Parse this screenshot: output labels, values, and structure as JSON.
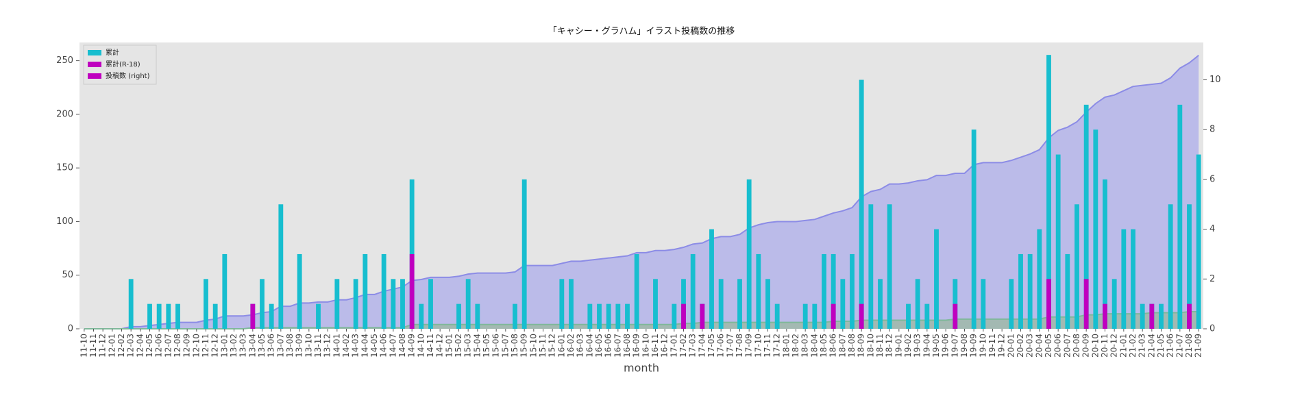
{
  "chart_data": {
    "type": "bar-area",
    "title": "「キャシー・グラハム」イラスト投稿数の推移",
    "xlabel": "month",
    "categories": [
      "11-10",
      "11-11",
      "11-12",
      "12-01",
      "12-02",
      "12-03",
      "12-04",
      "12-05",
      "12-06",
      "12-07",
      "12-08",
      "12-09",
      "12-10",
      "12-11",
      "12-12",
      "13-01",
      "13-02",
      "13-03",
      "13-04",
      "13-05",
      "13-06",
      "13-07",
      "13-08",
      "13-09",
      "13-10",
      "13-11",
      "13-12",
      "14-01",
      "14-02",
      "14-03",
      "14-04",
      "14-05",
      "14-06",
      "14-07",
      "14-08",
      "14-09",
      "14-10",
      "14-11",
      "14-12",
      "15-01",
      "15-02",
      "15-03",
      "15-04",
      "15-05",
      "15-06",
      "15-07",
      "15-08",
      "15-09",
      "15-10",
      "15-11",
      "15-12",
      "16-01",
      "16-02",
      "16-03",
      "16-04",
      "16-05",
      "16-06",
      "16-07",
      "16-08",
      "16-09",
      "16-10",
      "16-11",
      "16-12",
      "17-01",
      "17-02",
      "17-03",
      "17-04",
      "17-05",
      "17-06",
      "17-07",
      "17-08",
      "17-09",
      "17-10",
      "17-11",
      "17-12",
      "18-01",
      "18-02",
      "18-03",
      "18-04",
      "18-05",
      "18-06",
      "18-07",
      "18-08",
      "18-09",
      "18-10",
      "18-11",
      "18-12",
      "19-01",
      "19-02",
      "19-03",
      "19-04",
      "19-05",
      "19-06",
      "19-07",
      "19-08",
      "19-09",
      "19-10",
      "19-11",
      "19-12",
      "20-01",
      "20-02",
      "20-03",
      "20-04",
      "20-05",
      "20-06",
      "20-07",
      "20-08",
      "20-09",
      "20-10",
      "20-11",
      "20-12",
      "21-01",
      "21-02",
      "21-03",
      "21-04",
      "21-05",
      "21-06",
      "21-07",
      "21-08",
      "21-09"
    ],
    "legend": [
      {
        "name": "累計",
        "color": "#17becf"
      },
      {
        "name": "累計(R-18)",
        "color": "#bf00bf"
      },
      {
        "name": "投稿数 (right)",
        "color": "#bf00bf"
      }
    ],
    "series": [
      {
        "kind": "area",
        "color": "#8c8ce6",
        "fill": "#b4b4ea",
        "values": [
          0,
          0,
          0,
          0,
          0,
          2,
          2,
          3,
          4,
          5,
          6,
          6,
          6,
          8,
          9,
          12,
          12,
          12,
          13,
          15,
          16,
          21,
          21,
          24,
          24,
          25,
          25,
          27,
          27,
          29,
          32,
          32,
          35,
          37,
          39,
          45,
          46,
          48,
          48,
          48,
          49,
          51,
          52,
          52,
          52,
          52,
          53,
          59,
          59,
          59,
          59,
          61,
          63,
          63,
          64,
          65,
          66,
          67,
          68,
          71,
          71,
          73,
          73,
          74,
          76,
          79,
          80,
          84,
          86,
          86,
          88,
          94,
          97,
          99,
          100,
          100,
          100,
          101,
          102,
          105,
          108,
          110,
          113,
          123,
          128,
          130,
          135,
          135,
          136,
          138,
          139,
          143,
          143,
          145,
          145,
          153,
          155,
          155,
          155,
          157,
          160,
          163,
          167,
          178,
          185,
          188,
          193,
          202,
          210,
          216,
          218,
          222,
          226,
          227,
          228,
          229,
          234,
          243,
          248,
          255
        ]
      },
      {
        "kind": "area",
        "color": "#7fb89a",
        "fill": "#9fb8a8",
        "values": [
          0,
          0,
          0,
          0,
          0,
          0,
          0,
          0,
          0,
          0,
          0,
          0,
          0,
          0,
          0,
          0,
          0,
          0,
          1,
          1,
          1,
          1,
          1,
          1,
          1,
          1,
          1,
          1,
          1,
          1,
          1,
          1,
          1,
          1,
          1,
          4,
          4,
          4,
          4,
          4,
          4,
          4,
          4,
          4,
          4,
          4,
          4,
          4,
          4,
          4,
          4,
          4,
          4,
          4,
          4,
          4,
          4,
          4,
          4,
          4,
          4,
          4,
          4,
          4,
          5,
          5,
          6,
          6,
          6,
          6,
          6,
          6,
          6,
          6,
          6,
          6,
          6,
          6,
          6,
          6,
          7,
          7,
          7,
          8,
          8,
          8,
          8,
          8,
          8,
          8,
          8,
          8,
          8,
          9,
          9,
          9,
          9,
          9,
          9,
          9,
          9,
          9,
          9,
          11,
          11,
          11,
          11,
          13,
          13,
          14,
          14,
          14,
          14,
          14,
          15,
          15,
          15,
          15,
          16,
          16
        ]
      },
      {
        "kind": "bar",
        "axis": "y2",
        "color": "#17becf",
        "values": [
          0,
          0,
          0,
          0,
          0,
          2,
          0,
          1,
          1,
          1,
          1,
          0,
          0,
          2,
          1,
          3,
          0,
          0,
          1,
          2,
          1,
          5,
          0,
          3,
          0,
          1,
          0,
          2,
          0,
          2,
          3,
          0,
          3,
          2,
          2,
          6,
          1,
          2,
          0,
          0,
          1,
          2,
          1,
          0,
          0,
          0,
          1,
          6,
          0,
          0,
          0,
          2,
          2,
          0,
          1,
          1,
          1,
          1,
          1,
          3,
          0,
          2,
          0,
          1,
          2,
          3,
          1,
          4,
          2,
          0,
          2,
          6,
          3,
          2,
          1,
          0,
          0,
          1,
          1,
          3,
          3,
          2,
          3,
          10,
          5,
          2,
          5,
          0,
          1,
          2,
          1,
          4,
          0,
          2,
          0,
          8,
          2,
          0,
          0,
          2,
          3,
          3,
          4,
          11,
          7,
          3,
          5,
          9,
          8,
          6,
          2,
          4,
          4,
          1,
          1,
          1,
          5,
          9,
          5,
          7
        ]
      },
      {
        "kind": "bar",
        "axis": "y2",
        "color": "#bf00bf",
        "values": [
          0,
          0,
          0,
          0,
          0,
          0,
          0,
          0,
          0,
          0,
          0,
          0,
          0,
          0,
          0,
          0,
          0,
          0,
          1,
          0,
          0,
          0,
          0,
          0,
          0,
          0,
          0,
          0,
          0,
          0,
          0,
          0,
          0,
          0,
          0,
          3,
          0,
          0,
          0,
          0,
          0,
          0,
          0,
          0,
          0,
          0,
          0,
          0,
          0,
          0,
          0,
          0,
          0,
          0,
          0,
          0,
          0,
          0,
          0,
          0,
          0,
          0,
          0,
          0,
          1,
          0,
          1,
          0,
          0,
          0,
          0,
          0,
          0,
          0,
          0,
          0,
          0,
          0,
          0,
          0,
          1,
          0,
          0,
          1,
          0,
          0,
          0,
          0,
          0,
          0,
          0,
          0,
          0,
          1,
          0,
          0,
          0,
          0,
          0,
          0,
          0,
          0,
          0,
          2,
          0,
          0,
          0,
          2,
          0,
          1,
          0,
          0,
          0,
          0,
          1,
          0,
          0,
          0,
          1,
          0
        ]
      }
    ],
    "ylim": [
      0,
      267
    ],
    "yticks": [
      0,
      50,
      100,
      150,
      200,
      250
    ],
    "y2lim": [
      0,
      11.5
    ],
    "y2ticks": [
      0,
      2,
      4,
      6,
      8,
      10
    ],
    "grid": false,
    "legend_loc": "upper left"
  }
}
